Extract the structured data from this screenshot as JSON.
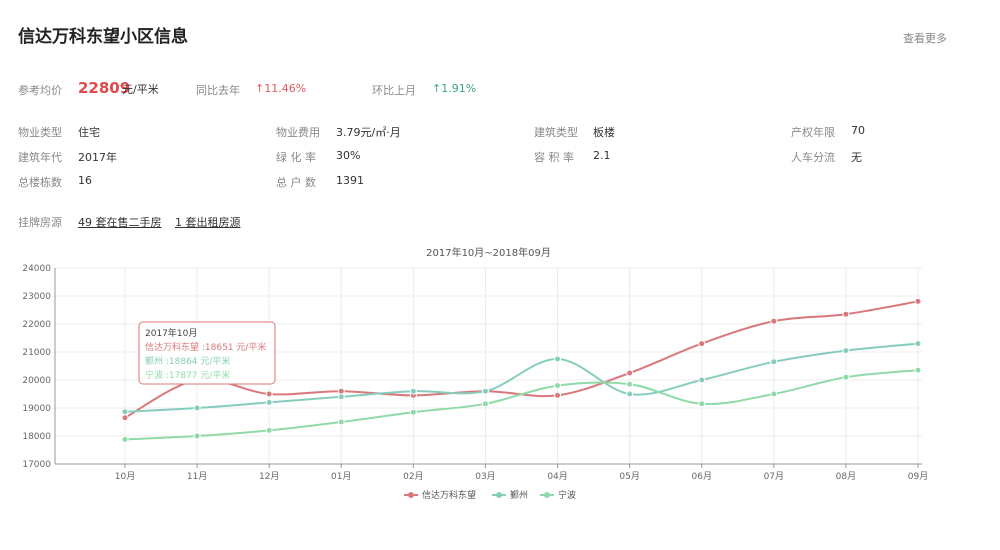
{
  "header": {
    "title": "信达万科东望小区信息",
    "more_link": "查看更多"
  },
  "price": {
    "label": "参考均价",
    "value": "22809",
    "unit": "元/平米",
    "yoy_label": "同比去年",
    "yoy_value": "↑11.46%",
    "mom_label": "环比上月",
    "mom_value": "↑1.91%",
    "yoy_color": "#e05a5e",
    "mom_color": "#3aa58b"
  },
  "details": {
    "property_type_label": "物业类型",
    "property_type": "住宅",
    "fee_label": "物业费用",
    "fee": "3.79元/㎡·月",
    "building_type_label": "建筑类型",
    "building_type": "板楼",
    "ownership_label": "产权年限",
    "ownership": "70",
    "year_label": "建筑年代",
    "year": "2017年",
    "green_label": "绿 化 率",
    "green": "30%",
    "far_label": "容 积 率",
    "far": "2.1",
    "separation_label": "人车分流",
    "separation": "无",
    "buildings_label": "总楼栋数",
    "buildings": "16",
    "households_label": "总 户 数",
    "households": "1391"
  },
  "listings": {
    "label": "挂牌房源",
    "sale_link": "49 套在售二手房",
    "rent_link": "1 套出租房源"
  },
  "tooltip": {
    "title": "2017年10月",
    "line1": "信达万科东望 :18651 元/平米",
    "line2": "鄞州 :18864 元/平米",
    "line3": "宁波 :17877 元/平米"
  },
  "chart_data": {
    "type": "line",
    "title": "2017年10月~2018年09月",
    "categories": [
      "10月",
      "11月",
      "12月",
      "01月",
      "02月",
      "03月",
      "04月",
      "05月",
      "06月",
      "07月",
      "08月",
      "09月"
    ],
    "ylim": [
      17000,
      24000
    ],
    "yticks": [
      17000,
      18000,
      19000,
      20000,
      21000,
      22000,
      23000,
      24000
    ],
    "grid": true,
    "legend_position": "bottom",
    "series": [
      {
        "name": "信达万科东望",
        "color": "#d9777a",
        "values": [
          18651,
          20000,
          19500,
          19600,
          19450,
          19600,
          19450,
          20250,
          21300,
          22100,
          22350,
          22809
        ]
      },
      {
        "name": "鄞州",
        "color": "#86cdbe",
        "values": [
          18864,
          19000,
          19200,
          19400,
          19600,
          19600,
          20750,
          19500,
          20000,
          20650,
          21050,
          21300
        ]
      },
      {
        "name": "宁波",
        "color": "#8fdaa8",
        "values": [
          17877,
          18000,
          18200,
          18500,
          18850,
          19150,
          19800,
          19850,
          19150,
          19500,
          20100,
          20350
        ]
      }
    ]
  }
}
